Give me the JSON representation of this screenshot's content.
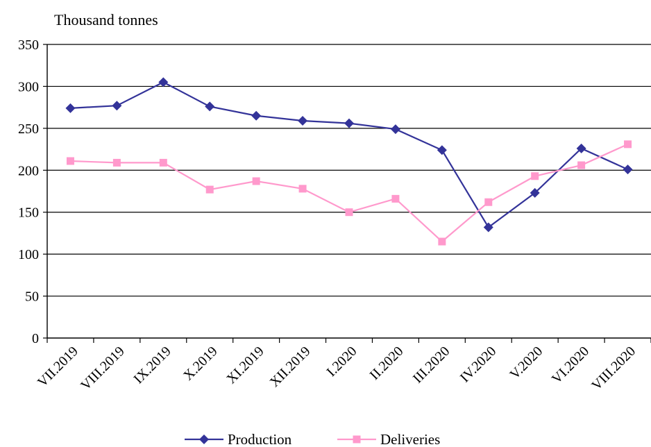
{
  "chart_data": {
    "type": "line",
    "title": "",
    "ylabel": "Thousand tonnes",
    "xlabel": "",
    "ylim": [
      0,
      350
    ],
    "yticks": [
      0,
      50,
      100,
      150,
      200,
      250,
      300,
      350
    ],
    "grid": "horizontal",
    "legend_position": "bottom",
    "categories": [
      "VII.2019",
      "VIII.2019",
      "IX.2019",
      "X.2019",
      "XI.2019",
      "XII.2019",
      "I.2020",
      "II.2020",
      "III.2020",
      "IV.2020",
      "V.2020",
      "VI.2020",
      "VIII.2020"
    ],
    "series": [
      {
        "name": "Production",
        "color": "#333399",
        "marker": "diamond",
        "values": [
          274,
          277,
          305,
          276,
          265,
          259,
          256,
          249,
          224,
          132,
          173,
          226,
          201
        ]
      },
      {
        "name": "Deliveries",
        "color": "#ff99cc",
        "marker": "square",
        "values": [
          211,
          209,
          209,
          177,
          187,
          178,
          150,
          166,
          115,
          162,
          193,
          206,
          231
        ]
      }
    ]
  }
}
